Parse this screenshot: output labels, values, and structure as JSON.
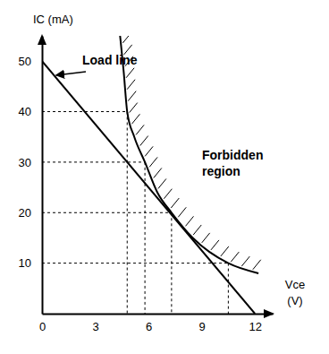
{
  "chart_data": {
    "type": "line",
    "xlabel": "Vce (V)",
    "ylabel": "IC (mA)",
    "xlim": [
      0,
      13
    ],
    "ylim": [
      0,
      55
    ],
    "xticks": [
      0,
      3,
      6,
      9,
      12
    ],
    "yticks": [
      10,
      20,
      30,
      40,
      50
    ],
    "grid": false,
    "series": [
      {
        "x": [
          0,
          12
        ],
        "values": [
          50,
          0
        ],
        "color": "#000000",
        "line_style": "solid"
      },
      {
        "x": [
          4.4,
          4.6,
          4.8,
          5.2,
          5.8,
          6.5,
          7.3,
          8.5,
          10.5,
          12.2
        ],
        "values": [
          55,
          48,
          40,
          35,
          30,
          24,
          20,
          15,
          10,
          8
        ],
        "color": "#000000",
        "line_style": "solid"
      }
    ],
    "guides": {
      "x": [
        4.8,
        5.8,
        7.3,
        10.5
      ],
      "y": [
        40,
        30,
        20,
        10
      ]
    },
    "annotations": [
      "Load line",
      "Forbidden region"
    ]
  }
}
